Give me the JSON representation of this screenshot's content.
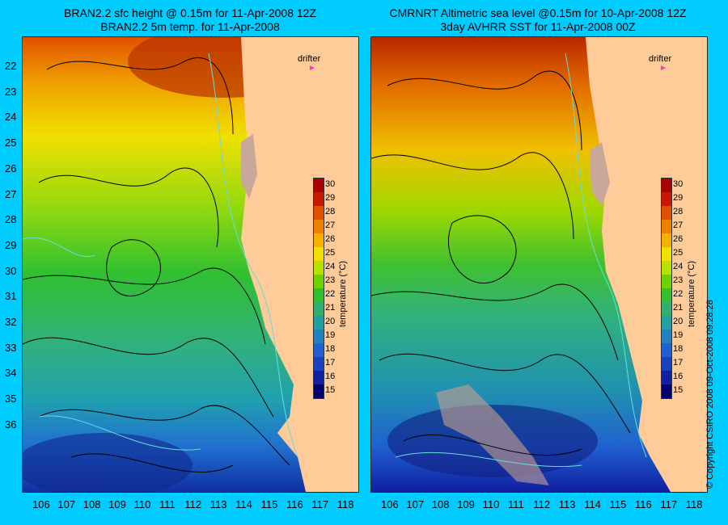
{
  "left_panel": {
    "title_line1": "BRAN2.2 sfc height @ 0.15m for 11-Apr-2008 12Z",
    "title_line2": "BRAN2.2 5m temp. for 11-Apr-2008"
  },
  "right_panel": {
    "title_line1": "CMRNRT Altimetric sea level  @0.15m  for 10-Apr-2008 12Z",
    "title_line2": "3day AVHRR SST for 11-Apr-2008 00Z"
  },
  "drifter_label": "drifter",
  "latitudes": [
    "22",
    "23",
    "24",
    "25",
    "26",
    "27",
    "28",
    "29",
    "30",
    "31",
    "32",
    "33",
    "34",
    "35",
    "36"
  ],
  "longitudes": [
    "106",
    "107",
    "108",
    "109",
    "110",
    "111",
    "112",
    "113",
    "114",
    "115",
    "116",
    "117",
    "118"
  ],
  "colorbar": {
    "ticks": [
      "30",
      "29",
      "28",
      "27",
      "26",
      "25",
      "24",
      "23",
      "22",
      "21",
      "20",
      "19",
      "18",
      "17",
      "16",
      "15"
    ],
    "colors": [
      "#a80000",
      "#c81800",
      "#e05000",
      "#f08000",
      "#f8b000",
      "#f0e000",
      "#b8e000",
      "#70d000",
      "#30c030",
      "#30b070",
      "#20a0a0",
      "#2080c0",
      "#2060d0",
      "#1840c0",
      "#1020a0",
      "#000070"
    ],
    "label": "temperature (°C)"
  },
  "copyright": "© Copyright CSIRO 2008   09-Oct-2008 09:28:28"
}
